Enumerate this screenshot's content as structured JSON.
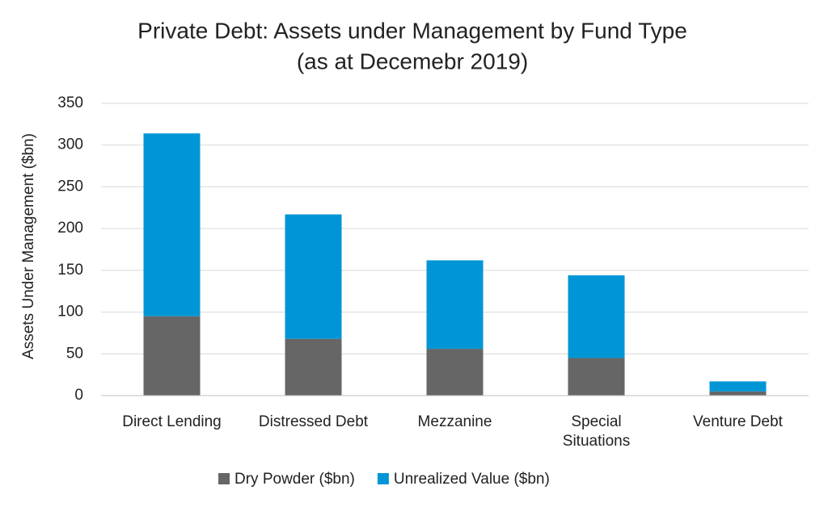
{
  "chart_data": {
    "type": "stacked_bar",
    "title": "Private Debt: Assets under Management by Fund Type",
    "subtitle": "(as at Decemebr 2019)",
    "y_label": "Assets Under Management ($bn)",
    "categories": [
      "Direct Lending",
      "Distressed Debt",
      "Mezzanine",
      "Special Situations",
      "Venture Debt"
    ],
    "series": [
      {
        "name": "Dry Powder ($bn)",
        "color": "#666666",
        "values": [
          95,
          68,
          56,
          45,
          5
        ]
      },
      {
        "name": "Unrealized Value ($bn)",
        "color": "#0096d6",
        "values": [
          219,
          149,
          106,
          99,
          12
        ]
      }
    ],
    "ylim": [
      0,
      350
    ],
    "yticks": [
      0,
      50,
      100,
      150,
      200,
      250,
      300,
      350
    ],
    "grid": true,
    "legend": "bottom"
  }
}
